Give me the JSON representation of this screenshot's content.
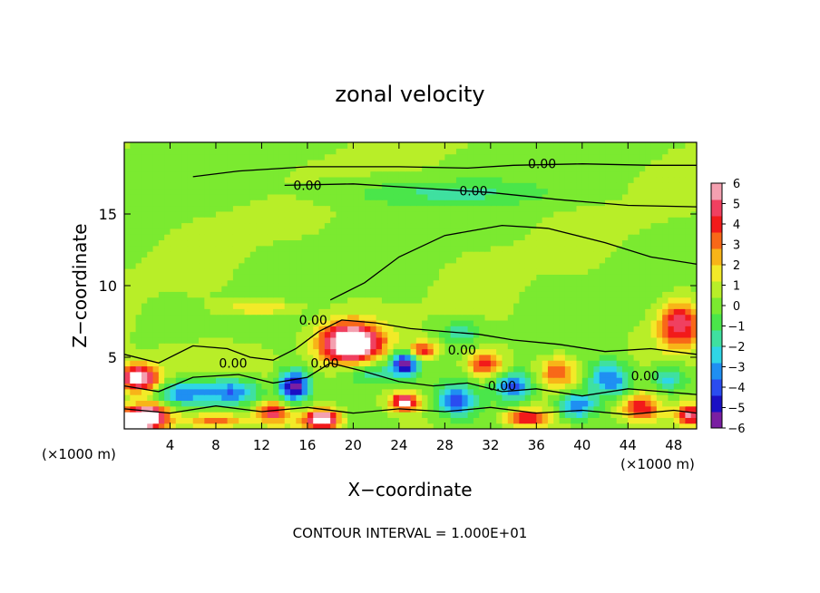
{
  "chart_data": {
    "type": "heatmap",
    "title": "zonal velocity",
    "xlabel": "X−coordinate",
    "ylabel": "Z−coordinate",
    "x_unit_left": "(×1000 m)",
    "x_unit_right": "(×1000 m)",
    "footer": "CONTOUR INTERVAL = 1.000E+01",
    "xlim": [
      0,
      50
    ],
    "ylim": [
      0,
      20
    ],
    "x_ticks": [
      4,
      8,
      12,
      16,
      20,
      24,
      28,
      32,
      36,
      40,
      44,
      48
    ],
    "x_tick_labels": [
      "4",
      "8",
      "12",
      "16",
      "20",
      "24",
      "28",
      "32",
      "36",
      "40",
      "44",
      "48"
    ],
    "y_ticks": [
      5,
      10,
      15
    ],
    "y_tick_labels": [
      "5",
      "10",
      "15"
    ],
    "contour_label": "0.00",
    "colorbar": {
      "min": -6,
      "max": 6,
      "tick_labels": [
        "6",
        "5",
        "4",
        "3",
        "2",
        "1",
        "0",
        "−1",
        "−2",
        "−3",
        "−4",
        "−5",
        "−6"
      ],
      "colors": [
        "#7a1fa2",
        "#1a0fc4",
        "#2a4cf0",
        "#1f8ff2",
        "#2fd6e6",
        "#3fe0a0",
        "#4ae64a",
        "#7bea30",
        "#b8ee28",
        "#f2ea28",
        "#f8b418",
        "#f86818",
        "#f21a1a",
        "#f04060",
        "#f4a0b0"
      ]
    },
    "field": {
      "background": 0.3,
      "blobs": [
        {
          "x": 0.5,
          "z": 0.5,
          "rx": 2.0,
          "rz": 0.6,
          "v": 7.0
        },
        {
          "x": 2.0,
          "z": 1.0,
          "rx": 1.8,
          "rz": 0.8,
          "v": 6.0
        },
        {
          "x": 1.2,
          "z": 3.6,
          "rx": 1.8,
          "rz": 0.9,
          "v": 6.5
        },
        {
          "x": 5.0,
          "z": 2.5,
          "rx": 2.0,
          "rz": 0.8,
          "v": -3.5
        },
        {
          "x": 9.5,
          "z": 2.6,
          "rx": 2.6,
          "rz": 0.9,
          "v": -4.0
        },
        {
          "x": 8.0,
          "z": 0.6,
          "rx": 2.2,
          "rz": 0.5,
          "v": 3.5
        },
        {
          "x": 13.0,
          "z": 1.2,
          "rx": 1.4,
          "rz": 0.7,
          "v": 4.0
        },
        {
          "x": 14.8,
          "z": 3.0,
          "rx": 1.3,
          "rz": 1.1,
          "v": -6.5
        },
        {
          "x": 17.3,
          "z": 0.7,
          "rx": 1.6,
          "rz": 0.7,
          "v": 7.0
        },
        {
          "x": 19.8,
          "z": 6.0,
          "rx": 2.6,
          "rz": 1.4,
          "v": 8.0
        },
        {
          "x": 21.5,
          "z": 4.0,
          "rx": 2.2,
          "rz": 0.9,
          "v": -2.5
        },
        {
          "x": 24.5,
          "z": 4.6,
          "rx": 1.2,
          "rz": 0.9,
          "v": -6.0
        },
        {
          "x": 24.5,
          "z": 1.9,
          "rx": 1.2,
          "rz": 0.6,
          "v": 6.0
        },
        {
          "x": 26.0,
          "z": 5.5,
          "rx": 1.3,
          "rz": 0.6,
          "v": 4.0
        },
        {
          "x": 29.5,
          "z": 6.8,
          "rx": 1.8,
          "rz": 0.8,
          "v": -2.0
        },
        {
          "x": 31.5,
          "z": 4.5,
          "rx": 1.6,
          "rz": 0.9,
          "v": 4.0
        },
        {
          "x": 29.0,
          "z": 2.0,
          "rx": 1.6,
          "rz": 1.0,
          "v": -4.0
        },
        {
          "x": 34.0,
          "z": 3.0,
          "rx": 1.6,
          "rz": 1.0,
          "v": -4.5
        },
        {
          "x": 35.0,
          "z": 0.8,
          "rx": 1.8,
          "rz": 0.5,
          "v": 4.0
        },
        {
          "x": 38.0,
          "z": 4.0,
          "rx": 1.6,
          "rz": 1.0,
          "v": 3.5
        },
        {
          "x": 39.5,
          "z": 1.6,
          "rx": 1.6,
          "rz": 0.9,
          "v": -4.0
        },
        {
          "x": 42.5,
          "z": 3.5,
          "rx": 1.8,
          "rz": 1.2,
          "v": -4.0
        },
        {
          "x": 45.0,
          "z": 1.5,
          "rx": 1.6,
          "rz": 0.9,
          "v": 4.0
        },
        {
          "x": 47.5,
          "z": 3.5,
          "rx": 1.6,
          "rz": 1.0,
          "v": -3.0
        },
        {
          "x": 48.5,
          "z": 7.3,
          "rx": 1.8,
          "rz": 1.6,
          "v": 5.0
        },
        {
          "x": 49.5,
          "z": 1.0,
          "rx": 1.2,
          "rz": 0.7,
          "v": 5.0
        },
        {
          "x": 28.0,
          "z": 16.5,
          "rx": 9.0,
          "rz": 0.9,
          "v": -1.6
        },
        {
          "x": 12.0,
          "z": 8.5,
          "rx": 3.0,
          "rz": 0.5,
          "v": 2.0
        },
        {
          "x": 6.0,
          "z": 5.0,
          "rx": 3.5,
          "rz": 1.2,
          "v": 1.2
        }
      ]
    },
    "contours": [
      [
        [
          6,
          17.6
        ],
        [
          10,
          18.0
        ],
        [
          16,
          18.3
        ],
        [
          24,
          18.3
        ],
        [
          30,
          18.2
        ],
        [
          34,
          18.4
        ],
        [
          40,
          18.5
        ],
        [
          46,
          18.4
        ],
        [
          50,
          18.4
        ]
      ],
      [
        [
          14,
          17.0
        ],
        [
          20,
          17.1
        ],
        [
          26,
          16.8
        ],
        [
          32,
          16.5
        ],
        [
          38,
          16.0
        ],
        [
          44,
          15.6
        ],
        [
          50,
          15.5
        ]
      ],
      [
        [
          18,
          9.0
        ],
        [
          21,
          10.2
        ],
        [
          24,
          12.0
        ],
        [
          28,
          13.5
        ],
        [
          33,
          14.2
        ],
        [
          37,
          14.0
        ],
        [
          42,
          13.0
        ],
        [
          46,
          12.0
        ],
        [
          50,
          11.5
        ]
      ],
      [
        [
          0,
          5.2
        ],
        [
          3,
          4.6
        ],
        [
          6,
          5.8
        ],
        [
          9,
          5.6
        ],
        [
          11,
          5.0
        ],
        [
          13,
          4.8
        ],
        [
          15,
          5.6
        ],
        [
          17,
          6.8
        ],
        [
          19,
          7.6
        ],
        [
          22,
          7.4
        ],
        [
          25,
          7.0
        ],
        [
          28,
          6.8
        ],
        [
          31,
          6.6
        ],
        [
          34,
          6.2
        ],
        [
          38,
          5.9
        ],
        [
          42,
          5.4
        ],
        [
          46,
          5.6
        ],
        [
          50,
          5.2
        ]
      ],
      [
        [
          0,
          3.0
        ],
        [
          3,
          2.6
        ],
        [
          6,
          3.6
        ],
        [
          10,
          3.8
        ],
        [
          13,
          3.2
        ],
        [
          16,
          3.6
        ],
        [
          18,
          4.6
        ],
        [
          21,
          4.0
        ],
        [
          24,
          3.3
        ],
        [
          27,
          3.0
        ],
        [
          30,
          3.2
        ],
        [
          33,
          2.6
        ],
        [
          36,
          2.8
        ],
        [
          40,
          2.3
        ],
        [
          44,
          2.8
        ],
        [
          47,
          2.6
        ],
        [
          50,
          2.4
        ]
      ],
      [
        [
          0,
          1.4
        ],
        [
          4,
          1.1
        ],
        [
          8,
          1.6
        ],
        [
          12,
          1.2
        ],
        [
          16,
          1.5
        ],
        [
          20,
          1.1
        ],
        [
          24,
          1.4
        ],
        [
          28,
          1.2
        ],
        [
          32,
          1.5
        ],
        [
          36,
          1.1
        ],
        [
          40,
          1.3
        ],
        [
          44,
          1.0
        ],
        [
          48,
          1.3
        ],
        [
          50,
          1.1
        ]
      ]
    ],
    "contour_labels": [
      {
        "x": 16.0,
        "z": 17.0
      },
      {
        "x": 30.5,
        "z": 16.6
      },
      {
        "x": 36.5,
        "z": 18.5
      },
      {
        "x": 16.5,
        "z": 7.6
      },
      {
        "x": 9.5,
        "z": 4.6
      },
      {
        "x": 17.5,
        "z": 4.6
      },
      {
        "x": 29.5,
        "z": 5.5
      },
      {
        "x": 33.0,
        "z": 3.0
      },
      {
        "x": 45.5,
        "z": 3.7
      }
    ]
  }
}
